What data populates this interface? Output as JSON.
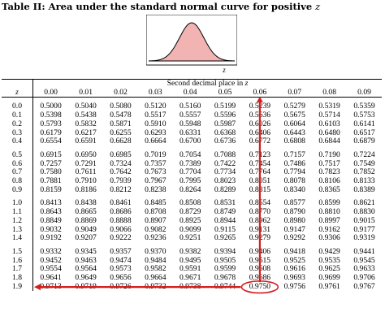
{
  "title": {
    "prefix": "Table II: Area under the standard normal curve for positive",
    "variable": "z"
  },
  "figure": {
    "axis_label": "z"
  },
  "table": {
    "super_header": "Second decimal place in",
    "super_header_var": "z",
    "z_header": "z",
    "columns": [
      "0.00",
      "0.01",
      "0.02",
      "0.03",
      "0.04",
      "0.05",
      "0.06",
      "0.07",
      "0.08",
      "0.09"
    ],
    "groups": [
      [
        {
          "z": "0.0",
          "v": [
            "0.5000",
            "0.5040",
            "0.5080",
            "0.5120",
            "0.5160",
            "0.5199",
            "0.5239",
            "0.5279",
            "0.5319",
            "0.5359"
          ]
        },
        {
          "z": "0.1",
          "v": [
            "0.5398",
            "0.5438",
            "0.5478",
            "0.5517",
            "0.5557",
            "0.5596",
            "0.5636",
            "0.5675",
            "0.5714",
            "0.5753"
          ]
        },
        {
          "z": "0.2",
          "v": [
            "0.5793",
            "0.5832",
            "0.5871",
            "0.5910",
            "0.5948",
            "0.5987",
            "0.6026",
            "0.6064",
            "0.6103",
            "0.6141"
          ]
        },
        {
          "z": "0.3",
          "v": [
            "0.6179",
            "0.6217",
            "0.6255",
            "0.6293",
            "0.6331",
            "0.6368",
            "0.6406",
            "0.6443",
            "0.6480",
            "0.6517"
          ]
        },
        {
          "z": "0.4",
          "v": [
            "0.6554",
            "0.6591",
            "0.6628",
            "0.6664",
            "0.6700",
            "0.6736",
            "0.6772",
            "0.6808",
            "0.6844",
            "0.6879"
          ]
        }
      ],
      [
        {
          "z": "0.5",
          "v": [
            "0.6915",
            "0.6950",
            "0.6985",
            "0.7019",
            "0.7054",
            "0.7088",
            "0.7123",
            "0.7157",
            "0.7190",
            "0.7224"
          ]
        },
        {
          "z": "0.6",
          "v": [
            "0.7257",
            "0.7291",
            "0.7324",
            "0.7357",
            "0.7389",
            "0.7422",
            "0.7454",
            "0.7486",
            "0.7517",
            "0.7549"
          ]
        },
        {
          "z": "0.7",
          "v": [
            "0.7580",
            "0.7611",
            "0.7642",
            "0.7673",
            "0.7704",
            "0.7734",
            "0.7764",
            "0.7794",
            "0.7823",
            "0.7852"
          ]
        },
        {
          "z": "0.8",
          "v": [
            "0.7881",
            "0.7910",
            "0.7939",
            "0.7967",
            "0.7995",
            "0.8023",
            "0.8051",
            "0.8078",
            "0.8106",
            "0.8133"
          ]
        },
        {
          "z": "0.9",
          "v": [
            "0.8159",
            "0.8186",
            "0.8212",
            "0.8238",
            "0.8264",
            "0.8289",
            "0.8315",
            "0.8340",
            "0.8365",
            "0.8389"
          ]
        }
      ],
      [
        {
          "z": "1.0",
          "v": [
            "0.8413",
            "0.8438",
            "0.8461",
            "0.8485",
            "0.8508",
            "0.8531",
            "0.8554",
            "0.8577",
            "0.8599",
            "0.8621"
          ]
        },
        {
          "z": "1.1",
          "v": [
            "0.8643",
            "0.8665",
            "0.8686",
            "0.8708",
            "0.8729",
            "0.8749",
            "0.8770",
            "0.8790",
            "0.8810",
            "0.8830"
          ]
        },
        {
          "z": "1.2",
          "v": [
            "0.8849",
            "0.8869",
            "0.8888",
            "0.8907",
            "0.8925",
            "0.8944",
            "0.8962",
            "0.8980",
            "0.8997",
            "0.9015"
          ]
        },
        {
          "z": "1.3",
          "v": [
            "0.9032",
            "0.9049",
            "0.9066",
            "0.9082",
            "0.9099",
            "0.9115",
            "0.9131",
            "0.9147",
            "0.9162",
            "0.9177"
          ]
        },
        {
          "z": "1.4",
          "v": [
            "0.9192",
            "0.9207",
            "0.9222",
            "0.9236",
            "0.9251",
            "0.9265",
            "0.9279",
            "0.9292",
            "0.9306",
            "0.9319"
          ]
        }
      ],
      [
        {
          "z": "1.5",
          "v": [
            "0.9332",
            "0.9345",
            "0.9357",
            "0.9370",
            "0.9382",
            "0.9394",
            "0.9406",
            "0.9418",
            "0.9429",
            "0.9441"
          ]
        },
        {
          "z": "1.6",
          "v": [
            "0.9452",
            "0.9463",
            "0.9474",
            "0.9484",
            "0.9495",
            "0.9505",
            "0.9515",
            "0.9525",
            "0.9535",
            "0.9545"
          ]
        },
        {
          "z": "1.7",
          "v": [
            "0.9554",
            "0.9564",
            "0.9573",
            "0.9582",
            "0.9591",
            "0.9599",
            "0.9608",
            "0.9616",
            "0.9625",
            "0.9633"
          ]
        },
        {
          "z": "1.8",
          "v": [
            "0.9641",
            "0.9649",
            "0.9656",
            "0.9664",
            "0.9671",
            "0.9678",
            "0.9686",
            "0.9693",
            "0.9699",
            "0.9706"
          ]
        },
        {
          "z": "1.9",
          "v": [
            "0.9713",
            "0.9719",
            "0.9726",
            "0.9732",
            "0.9738",
            "0.9744",
            "0.9750",
            "0.9756",
            "0.9761",
            "0.9767"
          ]
        }
      ]
    ]
  },
  "highlight": {
    "row_z": "1.9",
    "column": "0.06",
    "value": "0.9750",
    "color": "#d41f1f"
  },
  "colors": {
    "curve_fill": "#f2b3b3",
    "curve_fill_edge": "#e06f6f",
    "arrow": "#d41f1f"
  }
}
